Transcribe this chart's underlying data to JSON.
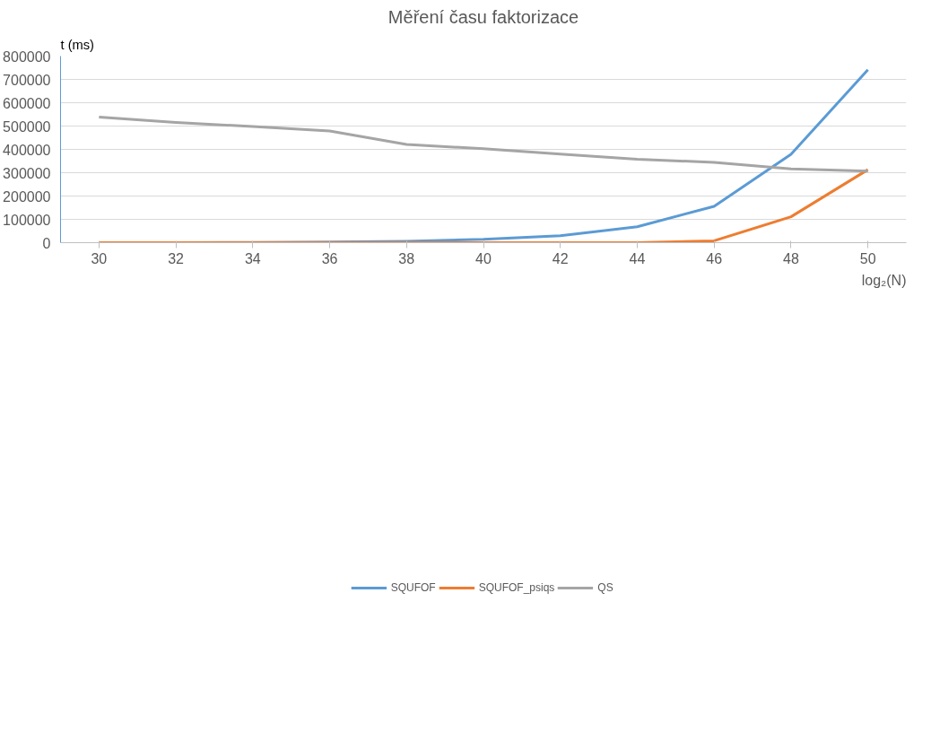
{
  "chart_data": {
    "type": "line",
    "title": "Měření času faktorizace",
    "xlabel": "log₂(N)",
    "ylabel": "t (ms)",
    "categories": [
      "30",
      "32",
      "34",
      "36",
      "38",
      "40",
      "42",
      "44",
      "46",
      "48",
      "50"
    ],
    "ylim": [
      0,
      800000
    ],
    "yticks": [
      0,
      100000,
      200000,
      300000,
      400000,
      500000,
      600000,
      700000,
      800000
    ],
    "grid": "y",
    "legend": "bottom",
    "marker": "none",
    "line_style": "solid",
    "series": [
      {
        "name": "SQUFOF",
        "color": "#5b9bd5",
        "values": [
          0,
          0,
          1000,
          3000,
          6000,
          14000,
          30000,
          68000,
          156000,
          379000,
          741000
        ]
      },
      {
        "name": "SQUFOF_psiqs",
        "color": "#ed7d31",
        "values": [
          0,
          0,
          0,
          0,
          0,
          0,
          0,
          0,
          8000,
          111000,
          313000
        ]
      },
      {
        "name": "QS",
        "color": "#a5a5a5",
        "values": [
          538000,
          515000,
          498000,
          479000,
          421000,
          403000,
          380000,
          358000,
          344000,
          316000,
          307000
        ]
      }
    ]
  }
}
